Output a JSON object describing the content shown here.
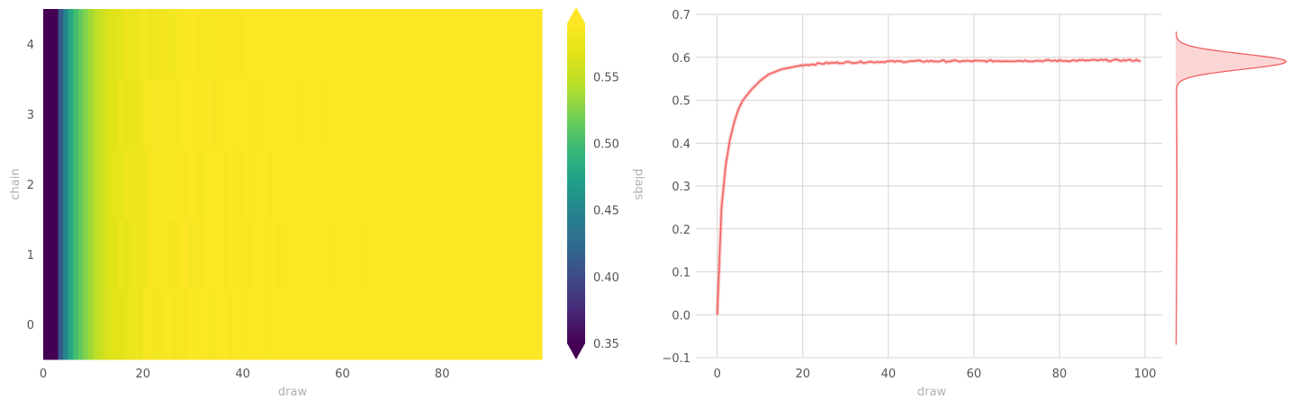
{
  "chart_data": [
    {
      "type": "heatmap",
      "title": "",
      "xlabel": "draw",
      "ylabel": "chain",
      "x_range": [
        0,
        100
      ],
      "x_ticks": [
        "0",
        "20",
        "40",
        "60",
        "80"
      ],
      "y_categories": [
        "0",
        "1",
        "2",
        "3",
        "4"
      ],
      "colorbar": {
        "label": "plaqs",
        "colormap": "viridis",
        "range": [
          0.35,
          0.59
        ],
        "ticks": [
          "0.35",
          "0.40",
          "0.45",
          "0.50",
          "0.55"
        ],
        "extend": "both"
      },
      "values_description": "per-chain draw values rise from about 0.0 at draw 0 to about 0.59 by draw 20 and stay near 0.59",
      "profile": [
        {
          "draw": 0,
          "value": 0.0
        },
        {
          "draw": 1,
          "value": 0.25
        },
        {
          "draw": 2,
          "value": 0.35
        },
        {
          "draw": 3,
          "value": 0.41
        },
        {
          "draw": 4,
          "value": 0.45
        },
        {
          "draw": 5,
          "value": 0.48
        },
        {
          "draw": 6,
          "value": 0.5
        },
        {
          "draw": 8,
          "value": 0.525
        },
        {
          "draw": 10,
          "value": 0.545
        },
        {
          "draw": 12,
          "value": 0.56
        },
        {
          "draw": 15,
          "value": 0.572
        },
        {
          "draw": 20,
          "value": 0.582
        },
        {
          "draw": 30,
          "value": 0.588
        },
        {
          "draw": 50,
          "value": 0.591
        },
        {
          "draw": 99,
          "value": 0.593
        }
      ]
    },
    {
      "type": "line",
      "title": "",
      "xlabel": "draw",
      "ylabel": "",
      "xlim": [
        -5,
        104
      ],
      "ylim": [
        -0.1,
        0.7
      ],
      "x_ticks": [
        "0",
        "20",
        "40",
        "60",
        "80",
        "100"
      ],
      "y_ticks": [
        "−0.1",
        "0.0",
        "0.1",
        "0.2",
        "0.3",
        "0.4",
        "0.5",
        "0.6",
        "0.7"
      ],
      "grid": true,
      "color": "#f25757",
      "series": [
        {
          "x": [
            0,
            1,
            2,
            3,
            4,
            5,
            6,
            8,
            10,
            12,
            15,
            20,
            25,
            30,
            40,
            50,
            60,
            70,
            80,
            90,
            99
          ],
          "y": [
            0.0,
            0.25,
            0.35,
            0.41,
            0.45,
            0.48,
            0.5,
            0.525,
            0.545,
            0.56,
            0.572,
            0.582,
            0.586,
            0.588,
            0.59,
            0.591,
            0.591,
            0.592,
            0.592,
            0.593,
            0.593
          ]
        }
      ],
      "marginal_density": {
        "orientation": "vertical",
        "peak_at": 0.59,
        "support": [
          -0.07,
          0.66
        ],
        "color": "#f25757"
      }
    }
  ]
}
